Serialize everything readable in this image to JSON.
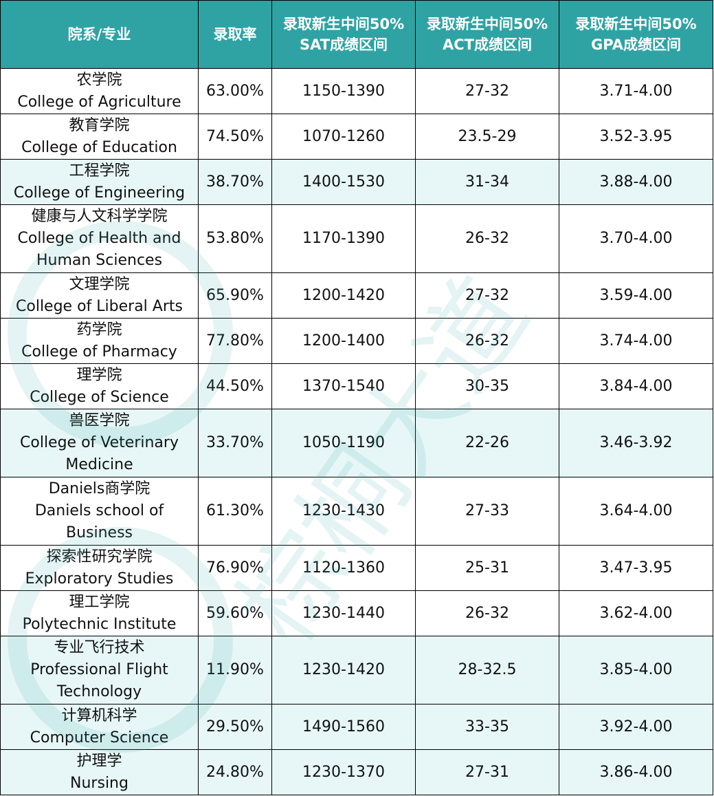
{
  "header": {
    "college": "院系/专业",
    "rate": "录取率",
    "sat": [
      "录取新生中间50%",
      "SAT成绩区间"
    ],
    "act": [
      "录取新生中间50%",
      "ACT成绩区间"
    ],
    "gpa": [
      "录取新生中间50%",
      "GPA成绩区间"
    ]
  },
  "rows": [
    {
      "zh": "农学院",
      "en": "College of Agriculture",
      "rate": "63.00%",
      "sat": "1150-1390",
      "act": "27-32",
      "gpa": "3.71-4.00",
      "tinted": false,
      "height": 66
    },
    {
      "zh": "教育学院",
      "en": "College of Education",
      "rate": "74.50%",
      "sat": "1070-1260",
      "act": "23.5-29",
      "gpa": "3.52-3.95",
      "tinted": false,
      "height": 66
    },
    {
      "zh": "工程学院",
      "en": "College of Engineering",
      "rate": "38.70%",
      "sat": "1400-1530",
      "act": "31-34",
      "gpa": "3.88-4.00",
      "tinted": true,
      "height": 66
    },
    {
      "zh": "健康与人文科学学院",
      "en": "College of Health and Human Sciences",
      "rate": "53.80%",
      "sat": "1170-1390",
      "act": "26-32",
      "gpa": "3.70-4.00",
      "tinted": false,
      "height": 99
    },
    {
      "zh": "文理学院",
      "en": "College of Liberal Arts",
      "rate": "65.90%",
      "sat": "1200-1420",
      "act": "27-32",
      "gpa": "3.59-4.00",
      "tinted": false,
      "height": 66
    },
    {
      "zh": "药学院",
      "en": "College of Pharmacy",
      "rate": "77.80%",
      "sat": "1200-1400",
      "act": "26-32",
      "gpa": "3.74-4.00",
      "tinted": false,
      "height": 66
    },
    {
      "zh": "理学院",
      "en": "College of Science",
      "rate": "44.50%",
      "sat": "1370-1540",
      "act": "30-35",
      "gpa": "3.84-4.00",
      "tinted": false,
      "height": 66
    },
    {
      "zh": "兽医学院",
      "en": "College of Veterinary Medicine",
      "rate": "33.70%",
      "sat": "1050-1190",
      "act": "22-26",
      "gpa": "3.46-3.92",
      "tinted": true,
      "height": 99
    },
    {
      "zh": "Daniels商学院",
      "en": "Daniels school of Business",
      "rate": "61.30%",
      "sat": "1230-1430",
      "act": "27-33",
      "gpa": "3.64-4.00",
      "tinted": false,
      "height": 99
    },
    {
      "zh": "探索性研究学院",
      "en": "Exploratory Studies",
      "rate": "76.90%",
      "sat": "1120-1360",
      "act": "25-31",
      "gpa": "3.47-3.95",
      "tinted": false,
      "height": 66
    },
    {
      "zh": "理工学院",
      "en": "Polytechnic Institute",
      "rate": "59.60%",
      "sat": "1230-1440",
      "act": "26-32",
      "gpa": "3.62-4.00",
      "tinted": false,
      "height": 66
    },
    {
      "zh": "专业飞行技术",
      "en": "Professional Flight Technology",
      "rate": "11.90%",
      "sat": "1230-1420",
      "act": "28-32.5",
      "gpa": "3.85-4.00",
      "tinted": true,
      "height": 99
    },
    {
      "zh": "计算机科学",
      "en": "Computer Science",
      "rate": "29.50%",
      "sat": "1490-1560",
      "act": "33-35",
      "gpa": "3.92-4.00",
      "tinted": true,
      "height": 66
    },
    {
      "zh": "护理学",
      "en": "Nursing",
      "rate": "24.80%",
      "sat": "1230-1370",
      "act": "27-31",
      "gpa": "3.86-4.00",
      "tinted": true,
      "height": 66
    }
  ],
  "watermark": {
    "text": "棕桐大道",
    "color": "#2fa3a3"
  }
}
